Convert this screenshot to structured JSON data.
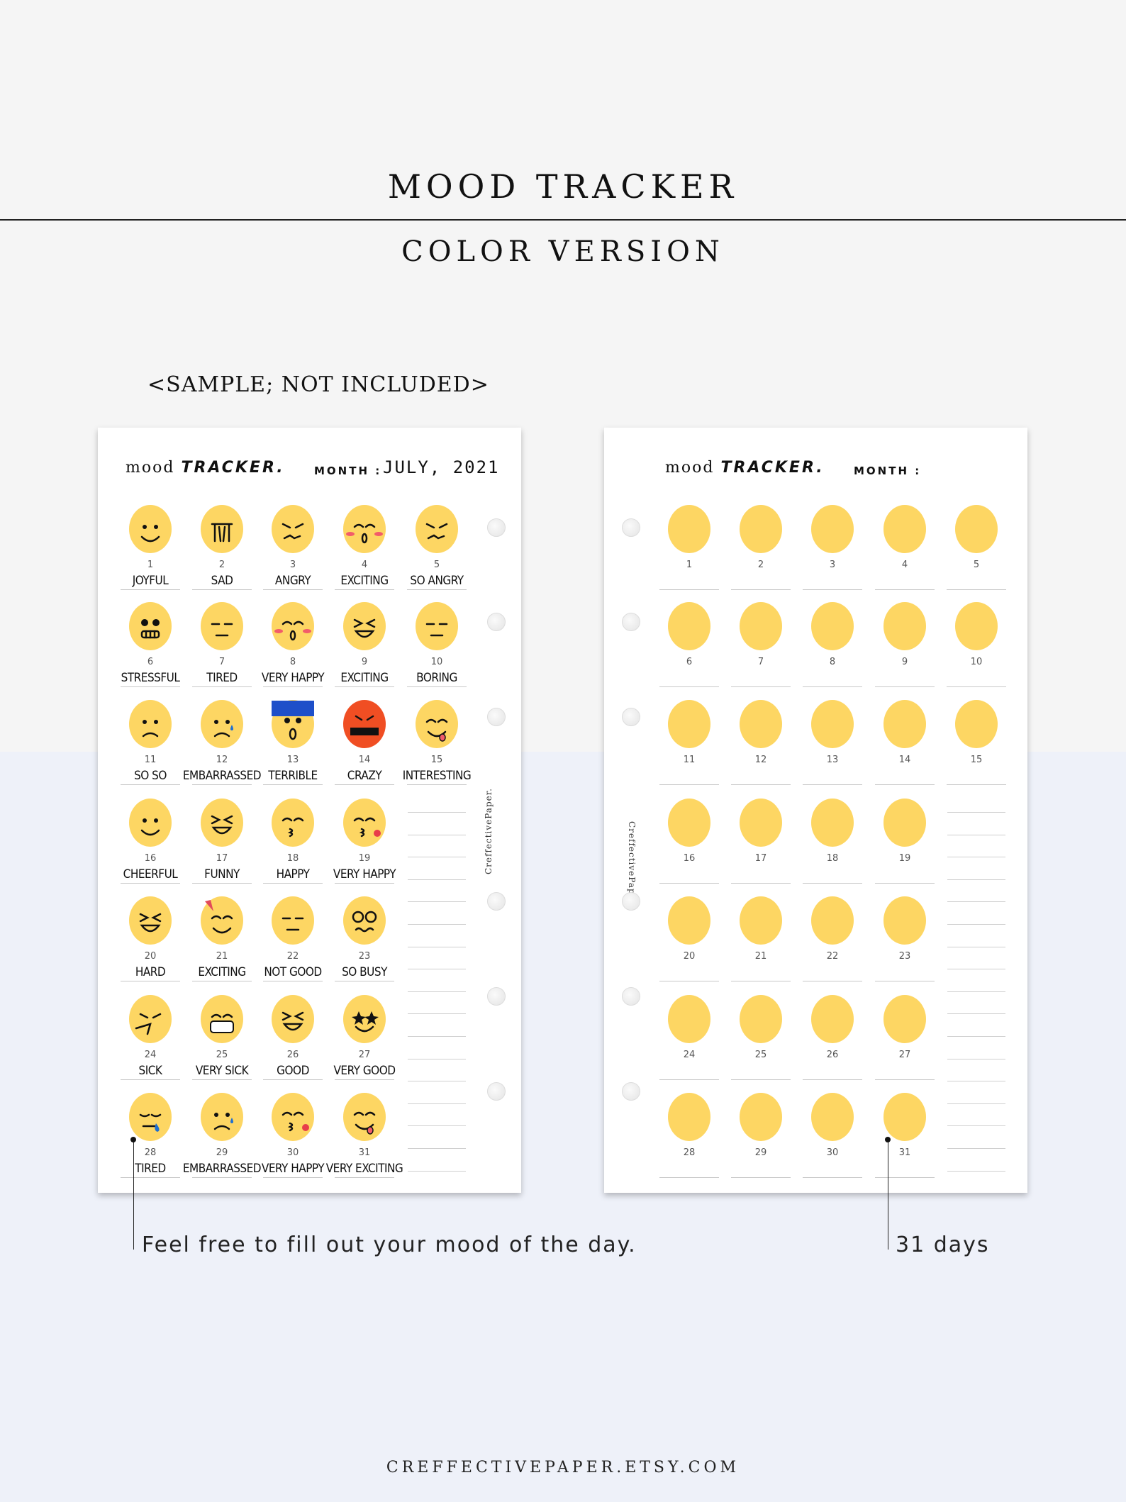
{
  "header": {
    "title": "MOOD TRACKER",
    "subtitle": "COLOR VERSION",
    "sample_note": "<SAMPLE; NOT INCLUDED>"
  },
  "colors": {
    "face": "#fdd663",
    "red_face": "#f04e23",
    "blue_hat": "#1e4fc9",
    "heart": "#e83d4a",
    "tear": "#1f6fd1"
  },
  "sample_page": {
    "title_light": "mood",
    "title_bold": "TRACKER.",
    "month_label": "MONTH :",
    "month_value": "JULY, 2021",
    "watermark": "CreffectivePaper.",
    "days": [
      {
        "n": "1",
        "label": "JOYFUL",
        "icon": "smile"
      },
      {
        "n": "2",
        "label": "SAD",
        "icon": "crying"
      },
      {
        "n": "3",
        "label": "ANGRY",
        "icon": "angry-steam"
      },
      {
        "n": "4",
        "label": "EXCITING",
        "icon": "blush-o"
      },
      {
        "n": "5",
        "label": "SO ANGRY",
        "icon": "devil"
      },
      {
        "n": "6",
        "label": "STRESSFUL",
        "icon": "grimace"
      },
      {
        "n": "7",
        "label": "TIRED",
        "icon": "sleepy"
      },
      {
        "n": "8",
        "label": "VERY HAPPY",
        "icon": "hearts-o"
      },
      {
        "n": "9",
        "label": "EXCITING",
        "icon": "laugh"
      },
      {
        "n": "10",
        "label": "BORING",
        "icon": "meh"
      },
      {
        "n": "11",
        "label": "SO SO",
        "icon": "frown"
      },
      {
        "n": "12",
        "label": "EMBARRASSED",
        "icon": "tear"
      },
      {
        "n": "13",
        "label": "TERRIBLE",
        "icon": "scream"
      },
      {
        "n": "14",
        "label": "CRAZY",
        "icon": "cursing"
      },
      {
        "n": "15",
        "label": "INTERESTING",
        "icon": "tongue"
      },
      {
        "n": "16",
        "label": "CHEERFUL",
        "icon": "wink"
      },
      {
        "n": "17",
        "label": "FUNNY",
        "icon": "lol"
      },
      {
        "n": "18",
        "label": "HAPPY",
        "icon": "kiss-blush"
      },
      {
        "n": "19",
        "label": "VERY HAPPY",
        "icon": "love"
      },
      {
        "n": "20",
        "label": "HARD",
        "icon": "confounded"
      },
      {
        "n": "21",
        "label": "EXCITING",
        "icon": "party"
      },
      {
        "n": "22",
        "label": "NOT GOOD",
        "icon": "neutral"
      },
      {
        "n": "23",
        "label": "SO BUSY",
        "icon": "dizzy"
      },
      {
        "n": "24",
        "label": "SICK",
        "icon": "sneeze"
      },
      {
        "n": "25",
        "label": "VERY SICK",
        "icon": "mask"
      },
      {
        "n": "26",
        "label": "GOOD",
        "icon": "grin"
      },
      {
        "n": "27",
        "label": "VERY GOOD",
        "icon": "star-eyes"
      },
      {
        "n": "28",
        "label": "TIRED",
        "icon": "drool"
      },
      {
        "n": "29",
        "label": "EMBARRASSED",
        "icon": "sad-tear"
      },
      {
        "n": "30",
        "label": "VERY HAPPY",
        "icon": "kiss-heart"
      },
      {
        "n": "31",
        "label": "VERY EXCITING",
        "icon": "tongue-squint"
      }
    ]
  },
  "blank_page": {
    "title_light": "mood",
    "title_bold": "TRACKER.",
    "month_label": "MONTH :",
    "watermark": "CreffectivePaper.",
    "days": [
      "1",
      "2",
      "3",
      "4",
      "5",
      "6",
      "7",
      "8",
      "9",
      "10",
      "11",
      "12",
      "13",
      "14",
      "15",
      "16",
      "17",
      "18",
      "19",
      "20",
      "21",
      "22",
      "23",
      "24",
      "25",
      "26",
      "27",
      "28",
      "29",
      "30",
      "31"
    ]
  },
  "notes": {
    "left": "Feel free to fill out your mood of the day.",
    "right": "31 days"
  },
  "footer": "CREFFECTIVEPAPER.ETSY.COM"
}
